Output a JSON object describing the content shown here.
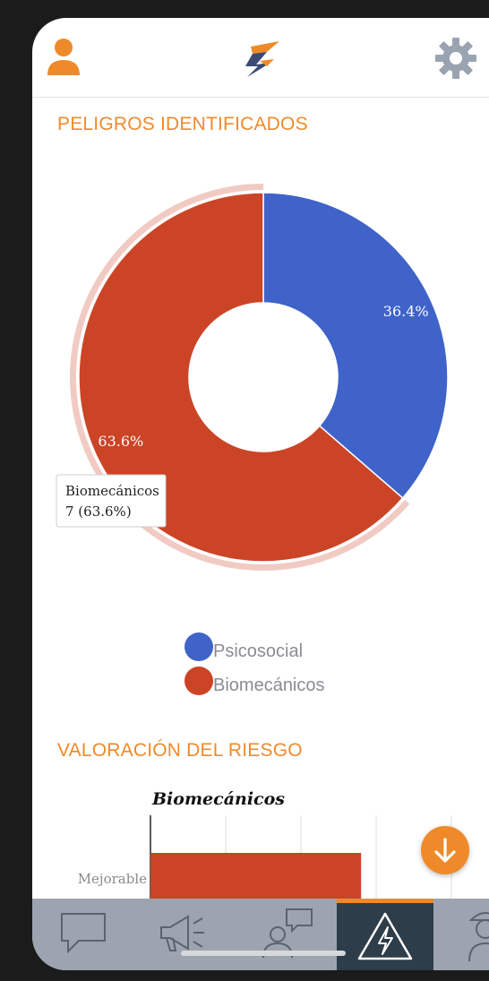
{
  "header": {
    "left_icon": "user-icon",
    "logo_icon": "brand-logo",
    "right_icon": "gear-icon",
    "accent_color": "#ef8a2a"
  },
  "section_hazards": {
    "title": "PELIGROS IDENTIFICADOS"
  },
  "chart_data": [
    {
      "type": "pie",
      "variant": "donut",
      "labels": [
        "Psicosocial",
        "Biomecánicos"
      ],
      "values": [
        4,
        7
      ],
      "percent_labels": [
        "36.4%",
        "63.6%"
      ],
      "colors": [
        "#3f63c9",
        "#cc4426"
      ],
      "highlighted": "Biomecánicos",
      "tooltip": {
        "name": "Biomecánicos",
        "value": "7 (63.6%)"
      },
      "legend_position": "bottom"
    },
    {
      "type": "bar",
      "orientation": "horizontal",
      "title": "Biomecánicos",
      "categories": [
        "Mejorable"
      ],
      "values": [
        7
      ],
      "xlim": [
        0,
        10
      ],
      "grid": true,
      "color": "#cc4426"
    }
  ],
  "section_risk": {
    "title": "VALORACIÓN DEL RIESGO"
  },
  "fab": {
    "icon": "arrow-down-icon"
  },
  "tabbar": {
    "active_index": 3,
    "tabs": [
      {
        "icon": "chat-icon"
      },
      {
        "icon": "megaphone-icon"
      },
      {
        "icon": "person-chat-icon"
      },
      {
        "icon": "high-voltage-warning-icon"
      },
      {
        "icon": "worker-icon"
      }
    ]
  }
}
